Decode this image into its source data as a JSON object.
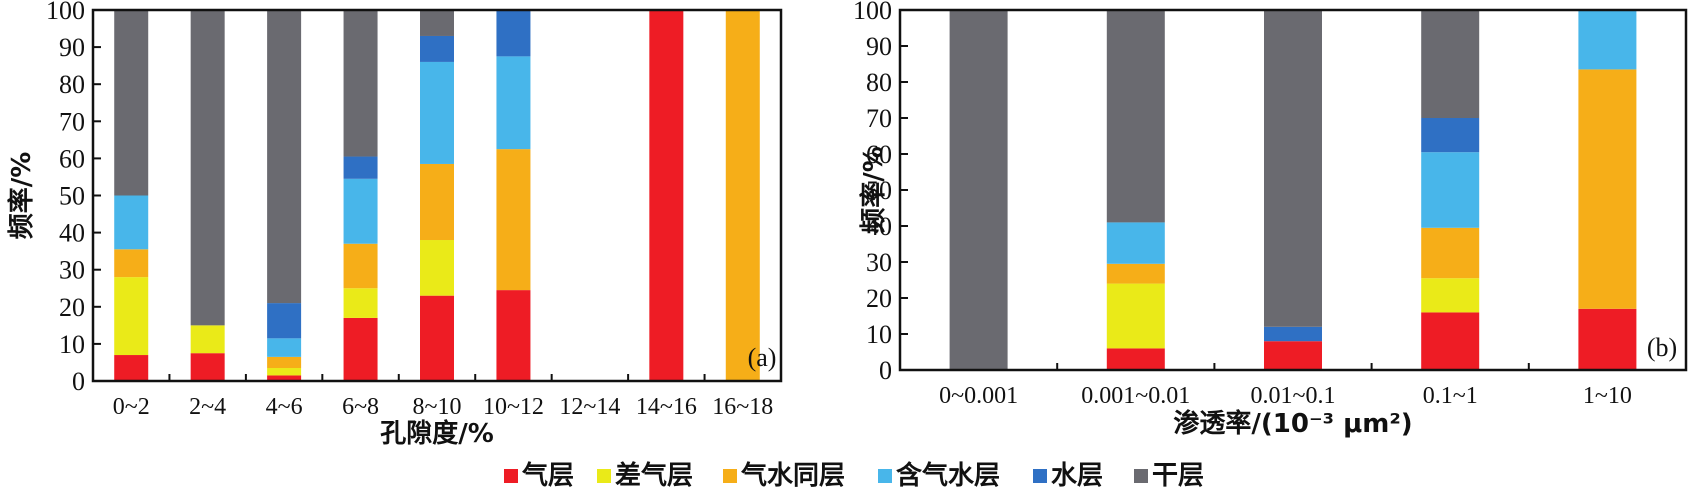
{
  "colors": {
    "气层": "#ee1c25",
    "差气层": "#eaea18",
    "气水同层": "#f6ae18",
    "含气水层": "#48b6ea",
    "水层": "#2f70c4",
    "干层": "#6a6a70"
  },
  "legend": [
    "气层",
    "差气层",
    "气水同层",
    "含气水层",
    "水层",
    "干层"
  ],
  "chart_data": [
    {
      "type": "bar",
      "stacked": true,
      "panel_label": "(a)",
      "xlabel": "孔隙度/%",
      "ylabel": "频率/%",
      "ylim": [
        0,
        100
      ],
      "yticks": [
        0,
        10,
        20,
        30,
        40,
        50,
        60,
        70,
        80,
        90,
        100
      ],
      "categories": [
        "0~2",
        "2~4",
        "4~6",
        "6~8",
        "8~10",
        "10~12",
        "12~14",
        "14~16",
        "16~18"
      ],
      "series": [
        {
          "name": "气层",
          "values": [
            7,
            7.5,
            1.5,
            17,
            23,
            24.5,
            0,
            100,
            0
          ]
        },
        {
          "name": "差气层",
          "values": [
            21,
            7.5,
            2,
            8,
            15,
            0,
            0,
            0,
            0
          ]
        },
        {
          "name": "气水同层",
          "values": [
            7.5,
            0,
            3,
            12,
            20.5,
            38,
            0,
            0,
            100
          ]
        },
        {
          "name": "含气水层",
          "values": [
            14.5,
            0,
            5,
            17.5,
            27.5,
            25,
            0,
            0,
            0
          ]
        },
        {
          "name": "水层",
          "values": [
            0,
            0,
            9.5,
            6,
            7,
            12.5,
            0,
            0,
            0
          ]
        },
        {
          "name": "干层",
          "values": [
            50,
            85,
            79,
            39.5,
            7,
            0,
            0,
            0,
            0
          ]
        }
      ]
    },
    {
      "type": "bar",
      "stacked": true,
      "panel_label": "(b)",
      "xlabel": "渗透率/(10⁻³ μm²)",
      "ylabel": "频率/%",
      "ylim": [
        0,
        100
      ],
      "yticks": [
        0,
        10,
        20,
        30,
        40,
        50,
        60,
        70,
        80,
        90,
        100
      ],
      "categories": [
        "0~0.001",
        "0.001~0.01",
        "0.01~0.1",
        "0.1~1",
        "1~10"
      ],
      "series": [
        {
          "name": "气层",
          "values": [
            0,
            6,
            8,
            16,
            17
          ]
        },
        {
          "name": "差气层",
          "values": [
            0,
            18,
            0,
            9.5,
            0
          ]
        },
        {
          "name": "气水同层",
          "values": [
            0,
            5.5,
            0,
            14,
            66.5
          ]
        },
        {
          "name": "含气水层",
          "values": [
            0,
            11.5,
            0,
            21,
            16.5
          ]
        },
        {
          "name": "水层",
          "values": [
            0,
            0,
            4,
            9.5,
            0
          ]
        },
        {
          "name": "干层",
          "values": [
            100,
            59,
            88,
            30,
            0
          ]
        }
      ]
    }
  ]
}
